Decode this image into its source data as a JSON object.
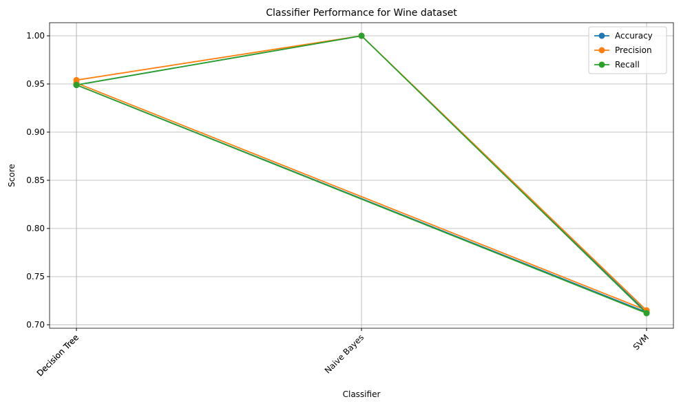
{
  "chart_data": {
    "type": "line",
    "title": "Classifier Performance for Wine dataset",
    "x_label": "Classifier",
    "y_label": "Score",
    "categories": [
      "Decision Tree",
      "Naive Bayes",
      "SVM",
      "Decision Tree"
    ],
    "series": [
      {
        "name": "Accuracy",
        "color": "#1f77b4",
        "values": [
          0.949,
          1.0,
          0.713,
          0.949
        ]
      },
      {
        "name": "Precision",
        "color": "#ff7f0e",
        "values": [
          0.954,
          1.0,
          0.715,
          0.951
        ]
      },
      {
        "name": "Recall",
        "color": "#2ca02c",
        "values": [
          0.949,
          1.0,
          0.712,
          0.949
        ]
      }
    ],
    "ylim": [
      0.6964,
      1.0136
    ],
    "yticks": [
      {
        "value": 0.7,
        "label": "0.70"
      },
      {
        "value": 0.75,
        "label": "0.75"
      },
      {
        "value": 0.8,
        "label": "0.80"
      },
      {
        "value": 0.85,
        "label": "0.85"
      },
      {
        "value": 0.9,
        "label": "0.90"
      },
      {
        "value": 0.95,
        "label": "0.95"
      },
      {
        "value": 1.0,
        "label": "1.00"
      }
    ],
    "grid": true,
    "legend": "upper right"
  }
}
